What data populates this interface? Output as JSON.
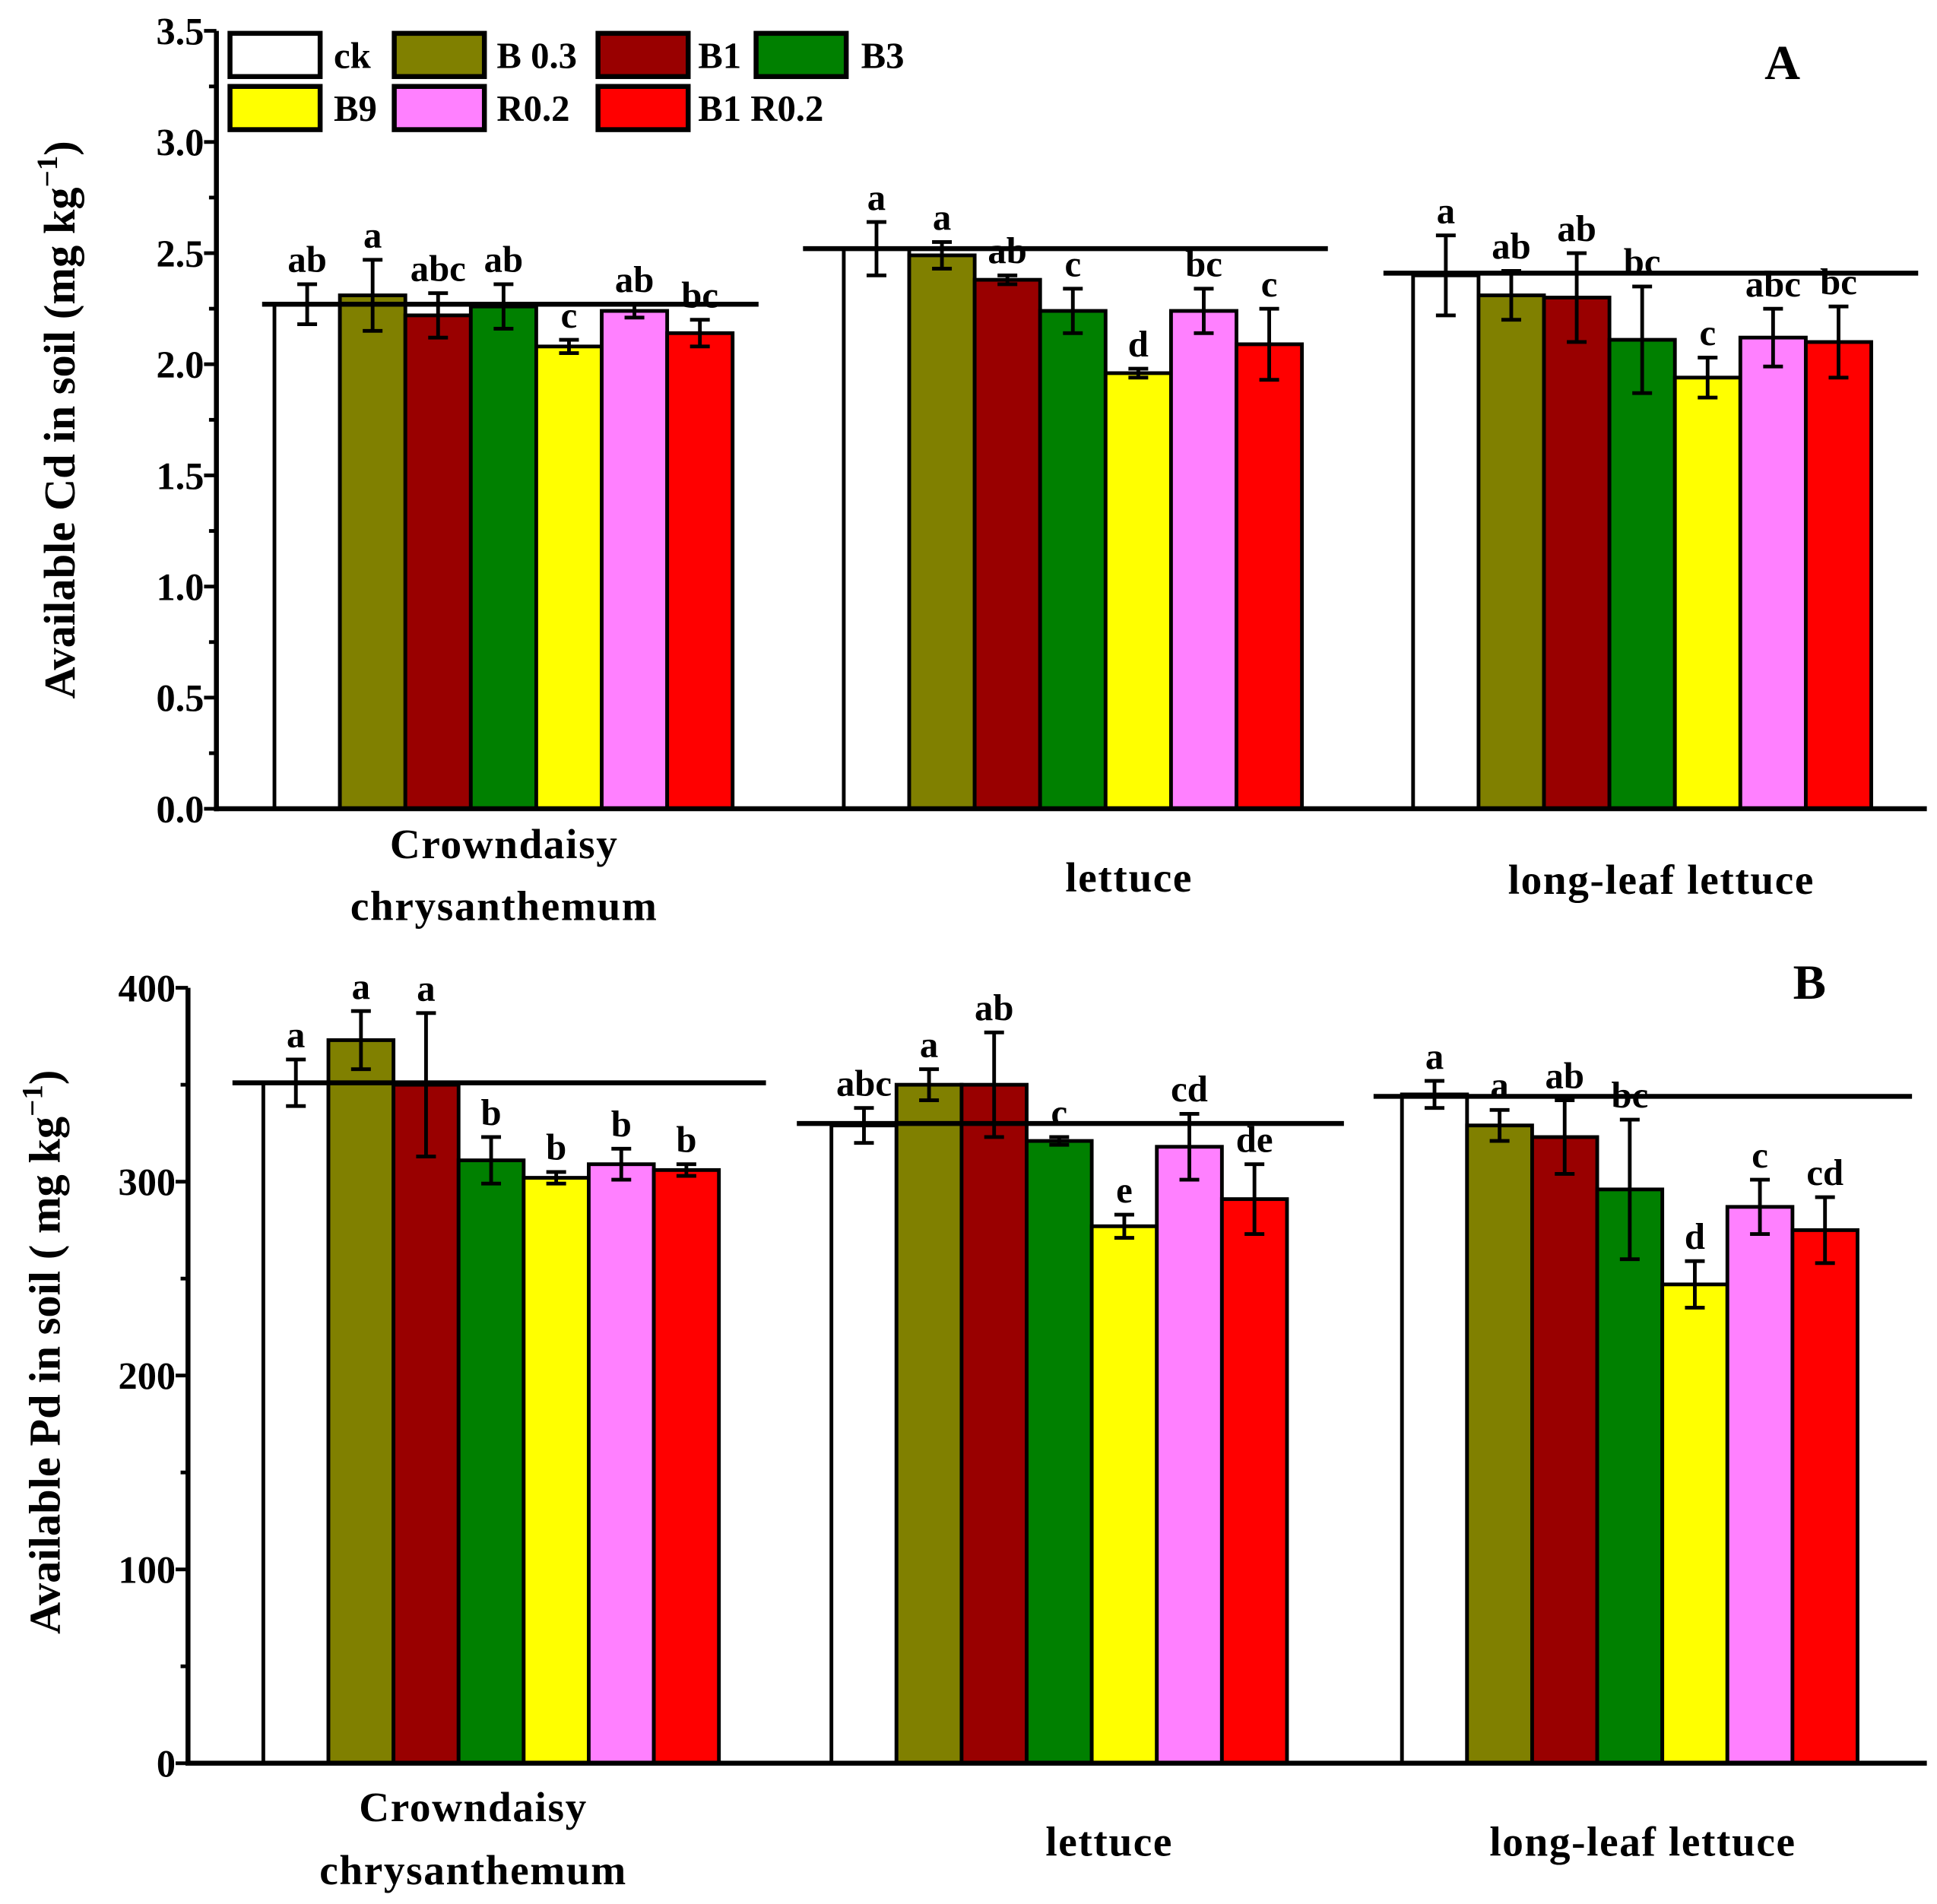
{
  "chart_data": [
    {
      "type": "bar",
      "panel_label": "A",
      "title": "",
      "ylabel": "Available Cd in soil (mg kg",
      "ylabel_sup": "−1",
      "ylabel_end": ")",
      "ylim": [
        0,
        3.5
      ],
      "yticks": [
        "0.0",
        "0.5",
        "1.0",
        "1.5",
        "2.0",
        "2.5",
        "3.0",
        "3.5"
      ],
      "ytick_step": 0.5,
      "categories": [
        [
          "Crowndaisy",
          "chrysanthemum"
        ],
        [
          "lettuce"
        ],
        [
          "long-leaf lettuce"
        ]
      ],
      "reference_lines": [
        2.27,
        2.52,
        2.41
      ],
      "series": [
        {
          "name": "ck",
          "color": "#FFFFFF",
          "values": [
            2.27,
            2.52,
            2.4
          ],
          "errors": [
            0.09,
            0.12,
            0.18
          ],
          "letters": [
            "ab",
            "a",
            "a"
          ]
        },
        {
          "name": "B 0.3",
          "color": "#808000",
          "values": [
            2.31,
            2.49,
            2.31
          ],
          "errors": [
            0.16,
            0.06,
            0.11
          ],
          "letters": [
            "a",
            "a",
            "ab"
          ]
        },
        {
          "name": "B1",
          "color": "#990000",
          "values": [
            2.22,
            2.38,
            2.3
          ],
          "errors": [
            0.1,
            0.02,
            0.2
          ],
          "letters": [
            "abc",
            "ab",
            "ab"
          ]
        },
        {
          "name": "B3",
          "color": "#008000",
          "values": [
            2.26,
            2.24,
            2.11
          ],
          "errors": [
            0.1,
            0.1,
            0.24
          ],
          "letters": [
            "ab",
            "c",
            "bc"
          ]
        },
        {
          "name": "B9",
          "color": "#FFFF00",
          "values": [
            2.08,
            1.96,
            1.94
          ],
          "errors": [
            0.03,
            0.02,
            0.09
          ],
          "letters": [
            "c",
            "d",
            "c"
          ]
        },
        {
          "name": "R0.2",
          "color": "#FF80FF",
          "values": [
            2.24,
            2.24,
            2.12
          ],
          "errors": [
            0.03,
            0.1,
            0.13
          ],
          "letters": [
            "ab",
            "bc",
            "abc"
          ]
        },
        {
          "name": "B1 R0.2",
          "color": "#FF0000",
          "values": [
            2.14,
            2.09,
            2.1
          ],
          "errors": [
            0.06,
            0.16,
            0.16
          ],
          "letters": [
            "bc",
            "c",
            "bc"
          ]
        }
      ],
      "legend": "top-left"
    },
    {
      "type": "bar",
      "panel_label": "B",
      "title": "",
      "ylabel": "Available Pd  in soil ( mg kg",
      "ylabel_sup": "−1",
      "ylabel_end": ")",
      "ylim": [
        0,
        400
      ],
      "yticks": [
        "0",
        "100",
        "200",
        "300",
        "400"
      ],
      "ytick_step": 100,
      "categories": [
        [
          "Crowndaisy",
          "chrysanthemum"
        ],
        [
          "lettuce"
        ],
        [
          "long-leaf lettuce"
        ]
      ],
      "reference_lines": [
        351,
        330,
        344
      ],
      "series": [
        {
          "name": "ck",
          "color": "#FFFFFF",
          "values": [
            351,
            329,
            345
          ],
          "errors": [
            12,
            9,
            7
          ],
          "letters": [
            "a",
            "abc",
            "a"
          ]
        },
        {
          "name": "B 0.3",
          "color": "#808000",
          "values": [
            373,
            350,
            329
          ],
          "errors": [
            15,
            8,
            8
          ],
          "letters": [
            "a",
            "a",
            "a"
          ]
        },
        {
          "name": "B1",
          "color": "#990000",
          "values": [
            350,
            350,
            323
          ],
          "errors": [
            37,
            27,
            19
          ],
          "letters": [
            "a",
            "ab",
            "ab"
          ]
        },
        {
          "name": "B3",
          "color": "#008000",
          "values": [
            311,
            321,
            296
          ],
          "errors": [
            12,
            2,
            36
          ],
          "letters": [
            "b",
            "c",
            "bc"
          ]
        },
        {
          "name": "B9",
          "color": "#FFFF00",
          "values": [
            302,
            277,
            247
          ],
          "errors": [
            3,
            6,
            12
          ],
          "letters": [
            "b",
            "e",
            "d"
          ]
        },
        {
          "name": "R0.2",
          "color": "#FF80FF",
          "values": [
            309,
            318,
            287
          ],
          "errors": [
            8,
            17,
            14
          ],
          "letters": [
            "b",
            "cd",
            "c"
          ]
        },
        {
          "name": "B1 R0.2",
          "color": "#FF0000",
          "values": [
            306,
            291,
            275
          ],
          "errors": [
            3,
            18,
            17
          ],
          "letters": [
            "b",
            "de",
            "cd"
          ]
        }
      ]
    }
  ]
}
